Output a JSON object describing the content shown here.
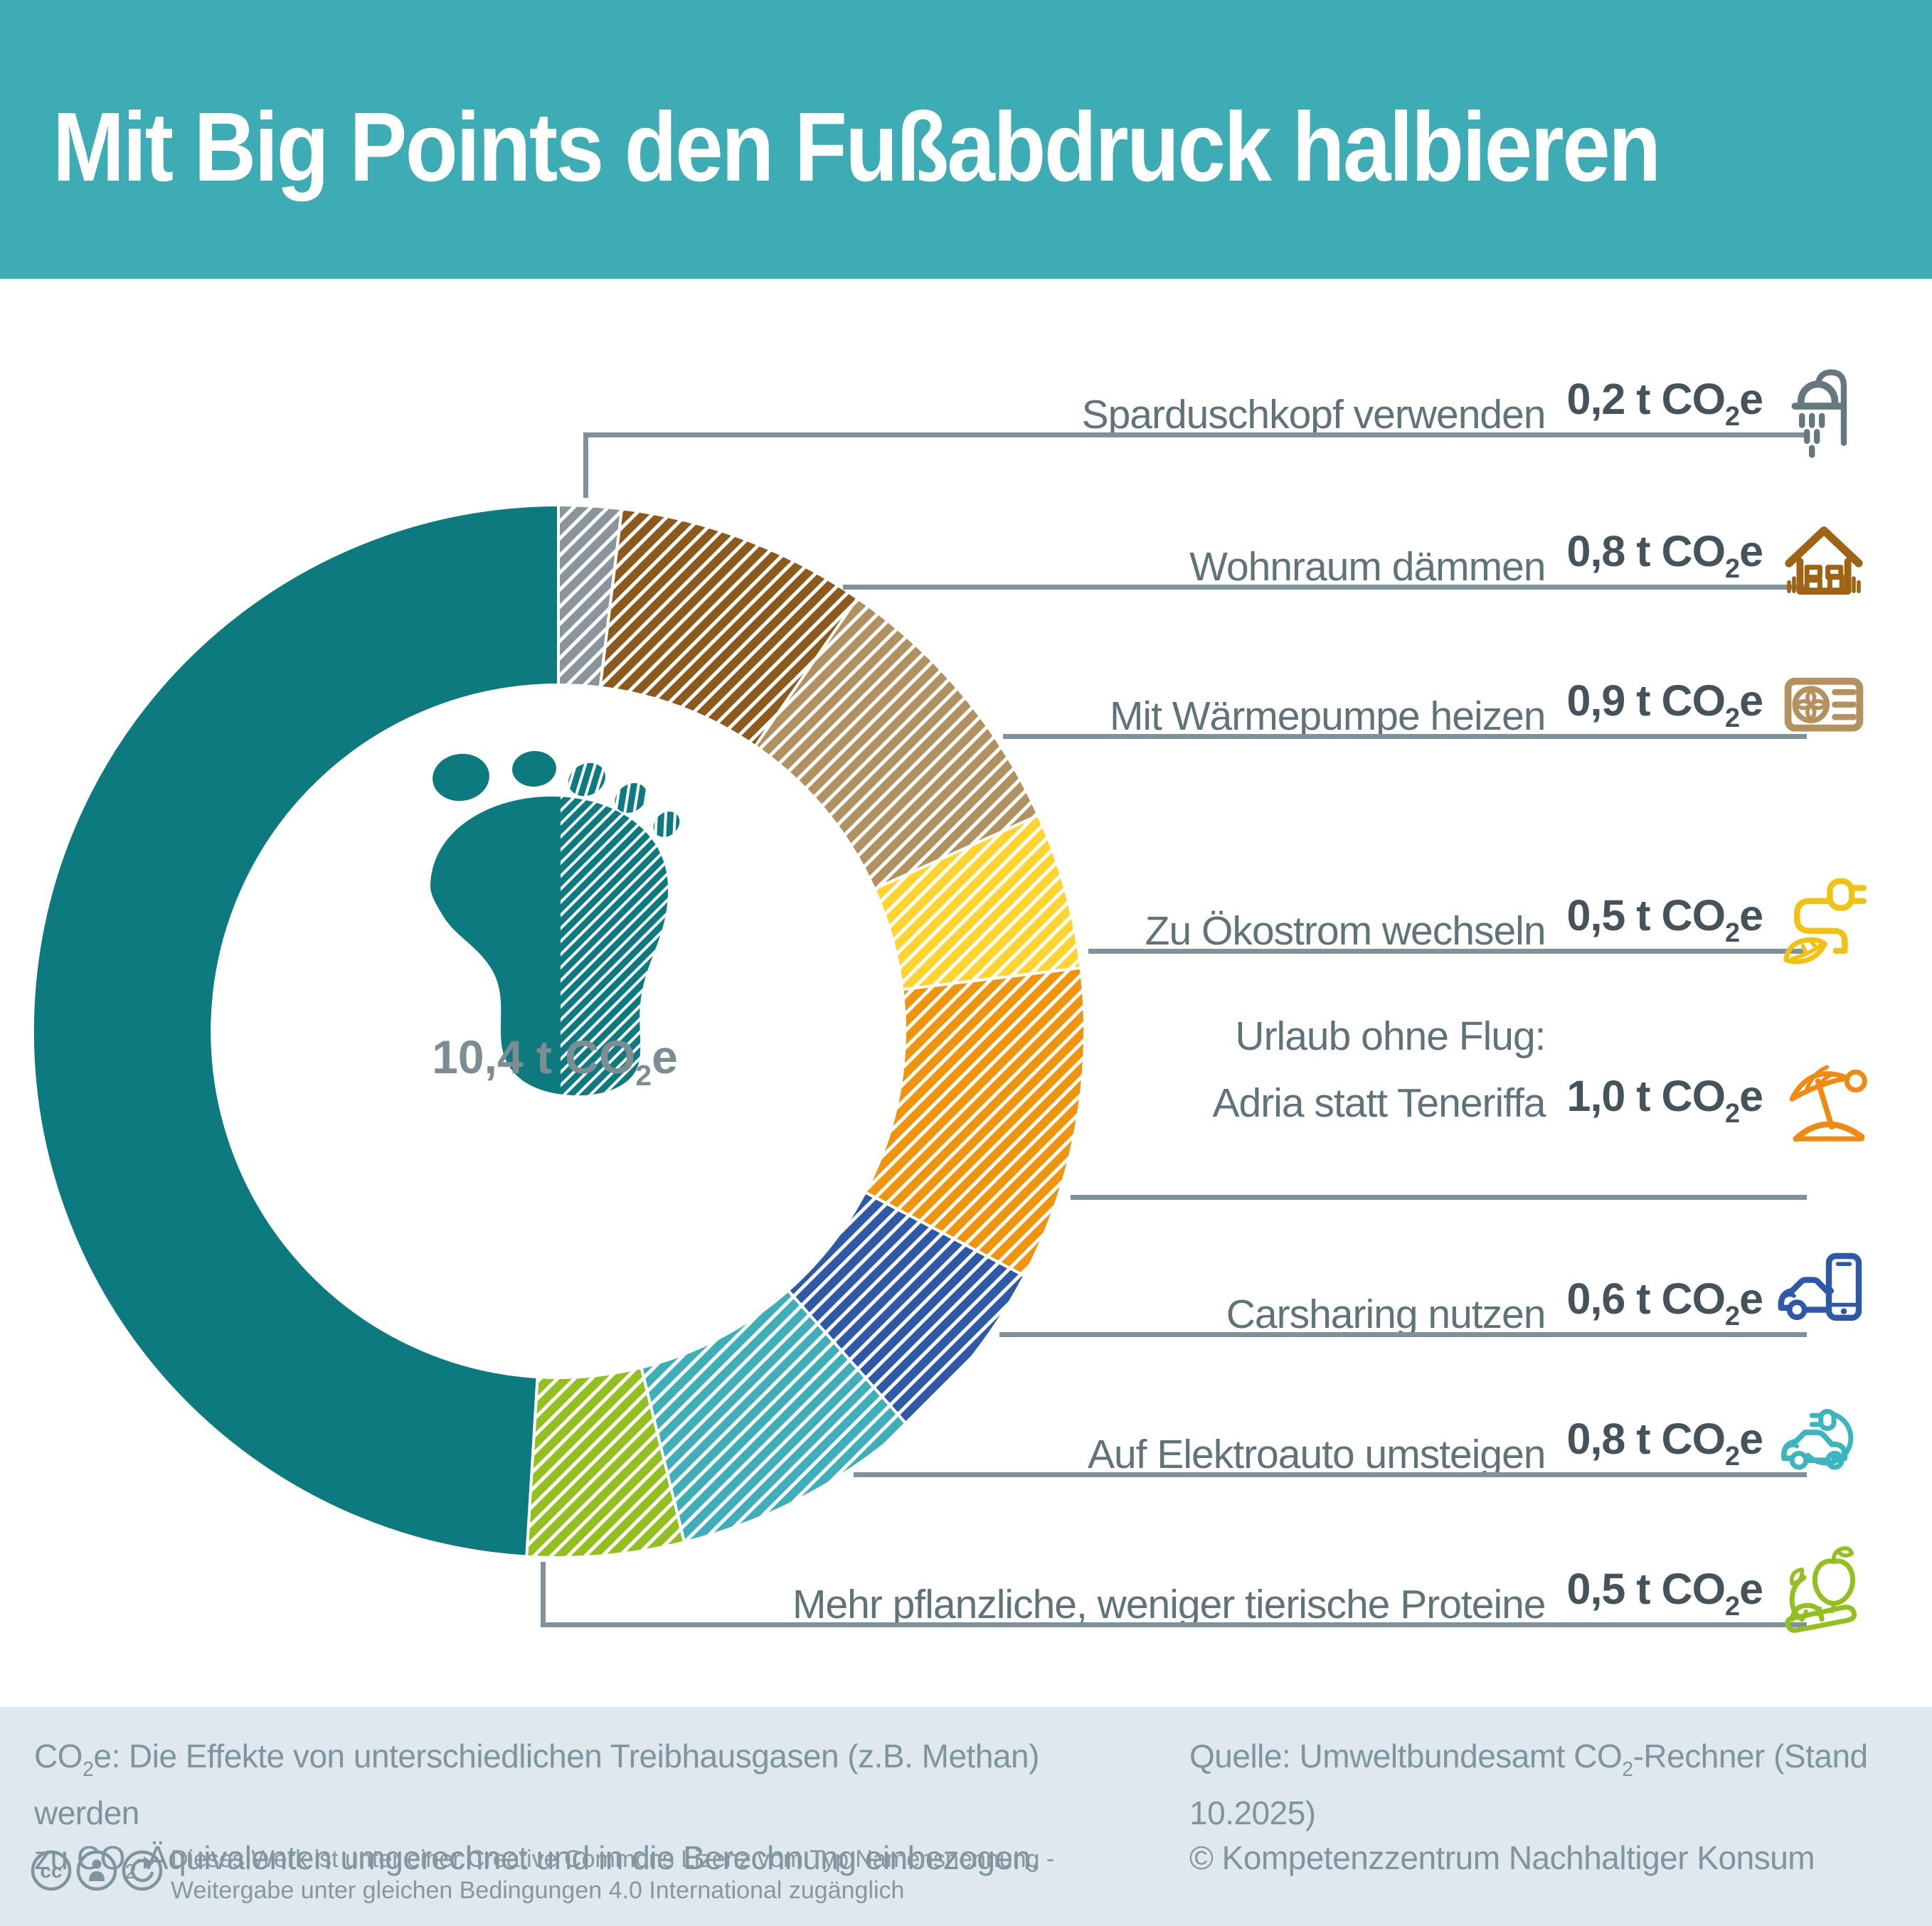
{
  "header": {
    "bg_color": "#3EACB4",
    "title_color": "#ffffff"
  },
  "chart_data": {
    "type": "donut",
    "title": "Mit Big Points den Fußabdruck halbieren",
    "center_label": "10,4 t CO₂e",
    "total": 10.4,
    "unit": "t CO₂e",
    "legend_position": "right",
    "remainder": {
      "value": 5.1,
      "color": "#0D7A80",
      "hatched": false
    },
    "slices": [
      {
        "label": "Sparduschkopf verwenden",
        "value": 0.2,
        "value_text": "0,2 t CO₂e",
        "color": "#8A959B",
        "icon": "shower-icon",
        "icon_color": "#64787D"
      },
      {
        "label": "Wohnraum dämmen",
        "value": 0.8,
        "value_text": "0,8 t CO₂e",
        "color": "#8D5A1D",
        "icon": "house-icon",
        "icon_color": "#9C6414"
      },
      {
        "label": "Mit Wärmepumpe heizen",
        "value": 0.9,
        "value_text": "0,9 t CO₂e",
        "color": "#B29160",
        "icon": "heatpump-icon",
        "icon_color": "#B4915F"
      },
      {
        "label": "Zu Ökostrom wechseln",
        "value": 0.5,
        "value_text": "0,5 t CO₂e",
        "color": "#FFD42F",
        "icon": "green-power-icon",
        "icon_color": "#F2C213"
      },
      {
        "label": "Urlaub ohne Flug:",
        "label2": "Adria statt Teneriffa",
        "value": 1.0,
        "value_text": "1,0 t CO₂e",
        "color": "#F0930D",
        "icon": "beach-icon",
        "icon_color": "#F08A12"
      },
      {
        "label": "Carsharing nutzen",
        "value": 0.6,
        "value_text": "0,6 t CO₂e",
        "color": "#2E59A6",
        "icon": "carsharing-icon",
        "icon_color": "#2E59A6"
      },
      {
        "label": "Auf Elektroauto umsteigen",
        "value": 0.8,
        "value_text": "0,8 t CO₂e",
        "color": "#3EAFB9",
        "icon": "ecar-icon",
        "icon_color": "#3BB6BF"
      },
      {
        "label": "Mehr pflanzliche, weniger tierische Proteine",
        "value": 0.5,
        "value_text": "0,5 t CO₂e",
        "color": "#92C01E",
        "icon": "food-icon",
        "icon_color": "#93C01F"
      }
    ]
  },
  "footer": {
    "bg_color": "#DEE8EE",
    "note_line1": "CO₂e: Die Effekte von unterschiedlichen Treibhausgasen (z.B. Methan) werden",
    "note_line2": "zu CO₂-Äquivalenten umgerechnet und in die Berechnung einbezogen.",
    "source_line1": "Quelle: Umweltbundesamt CO₂-Rechner (Stand 10.2025)",
    "source_line2": "© Kompetenzzentrum Nachhaltiger Konsum",
    "license_line1": "Dieses Werk ist unter einer Creative Commons Lizenz vom Typ Namensnennung -",
    "license_line2": "Weitergabe unter gleichen Bedingungen 4.0 International zugänglich",
    "license_icons": [
      "cc-icon",
      "by-icon",
      "sa-icon"
    ]
  }
}
